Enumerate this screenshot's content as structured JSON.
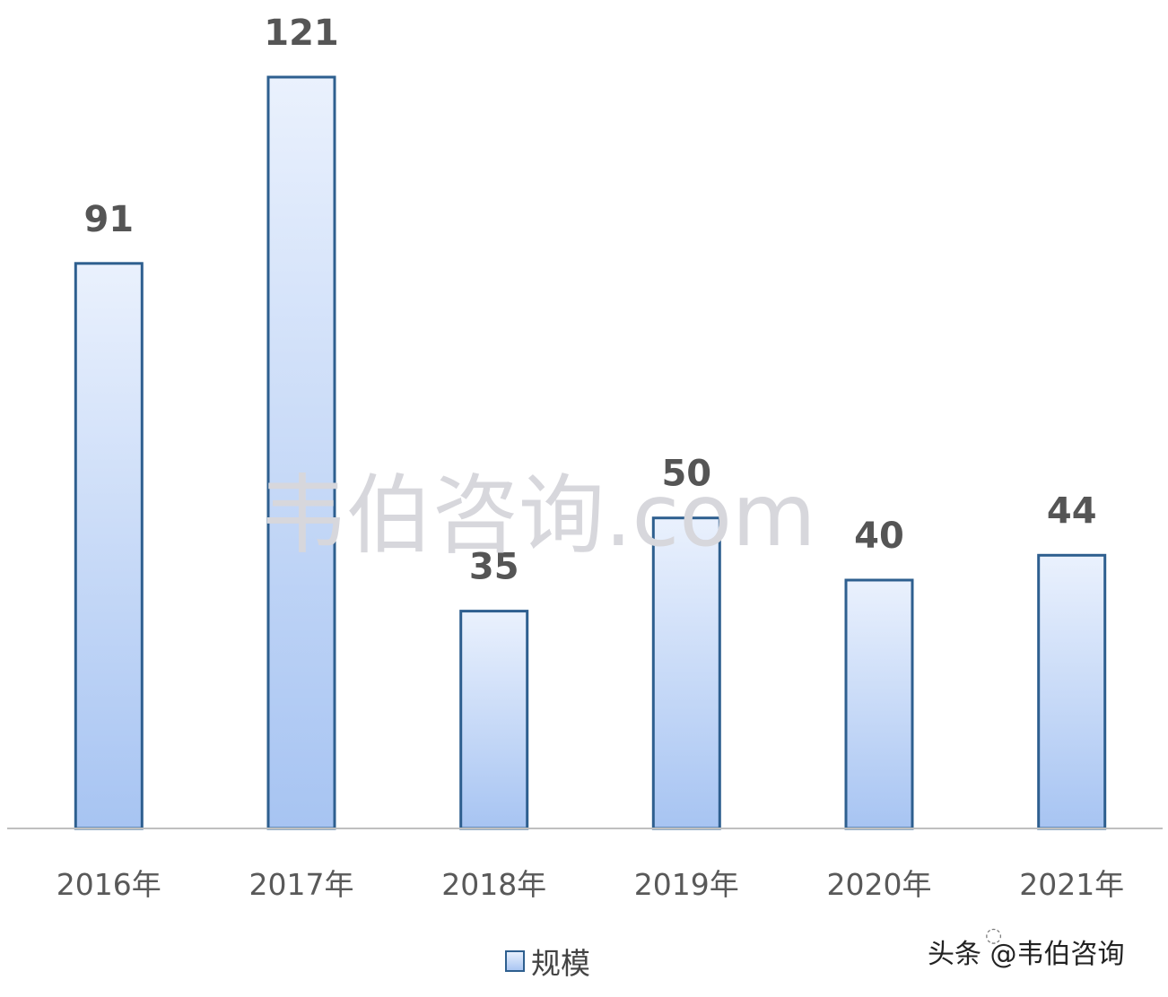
{
  "chart_data": {
    "type": "bar",
    "categories": [
      "2016年",
      "2017年",
      "2018年",
      "2019年",
      "2020年",
      "2021年"
    ],
    "series": [
      {
        "name": "规模",
        "values": [
          91,
          121,
          35,
          50,
          40,
          44
        ]
      }
    ],
    "ylim": [
      0,
      121
    ],
    "grid": false,
    "legend_position": "bottom-center",
    "colors": {
      "bar_top": "#eaf1fd",
      "bar_bottom": "#a7c4f2",
      "bar_stroke": "#2e5f8f",
      "axis": "#bfbfbf"
    }
  },
  "watermark": "韦伯咨询.com",
  "credit": "头条 @韦伯咨询"
}
